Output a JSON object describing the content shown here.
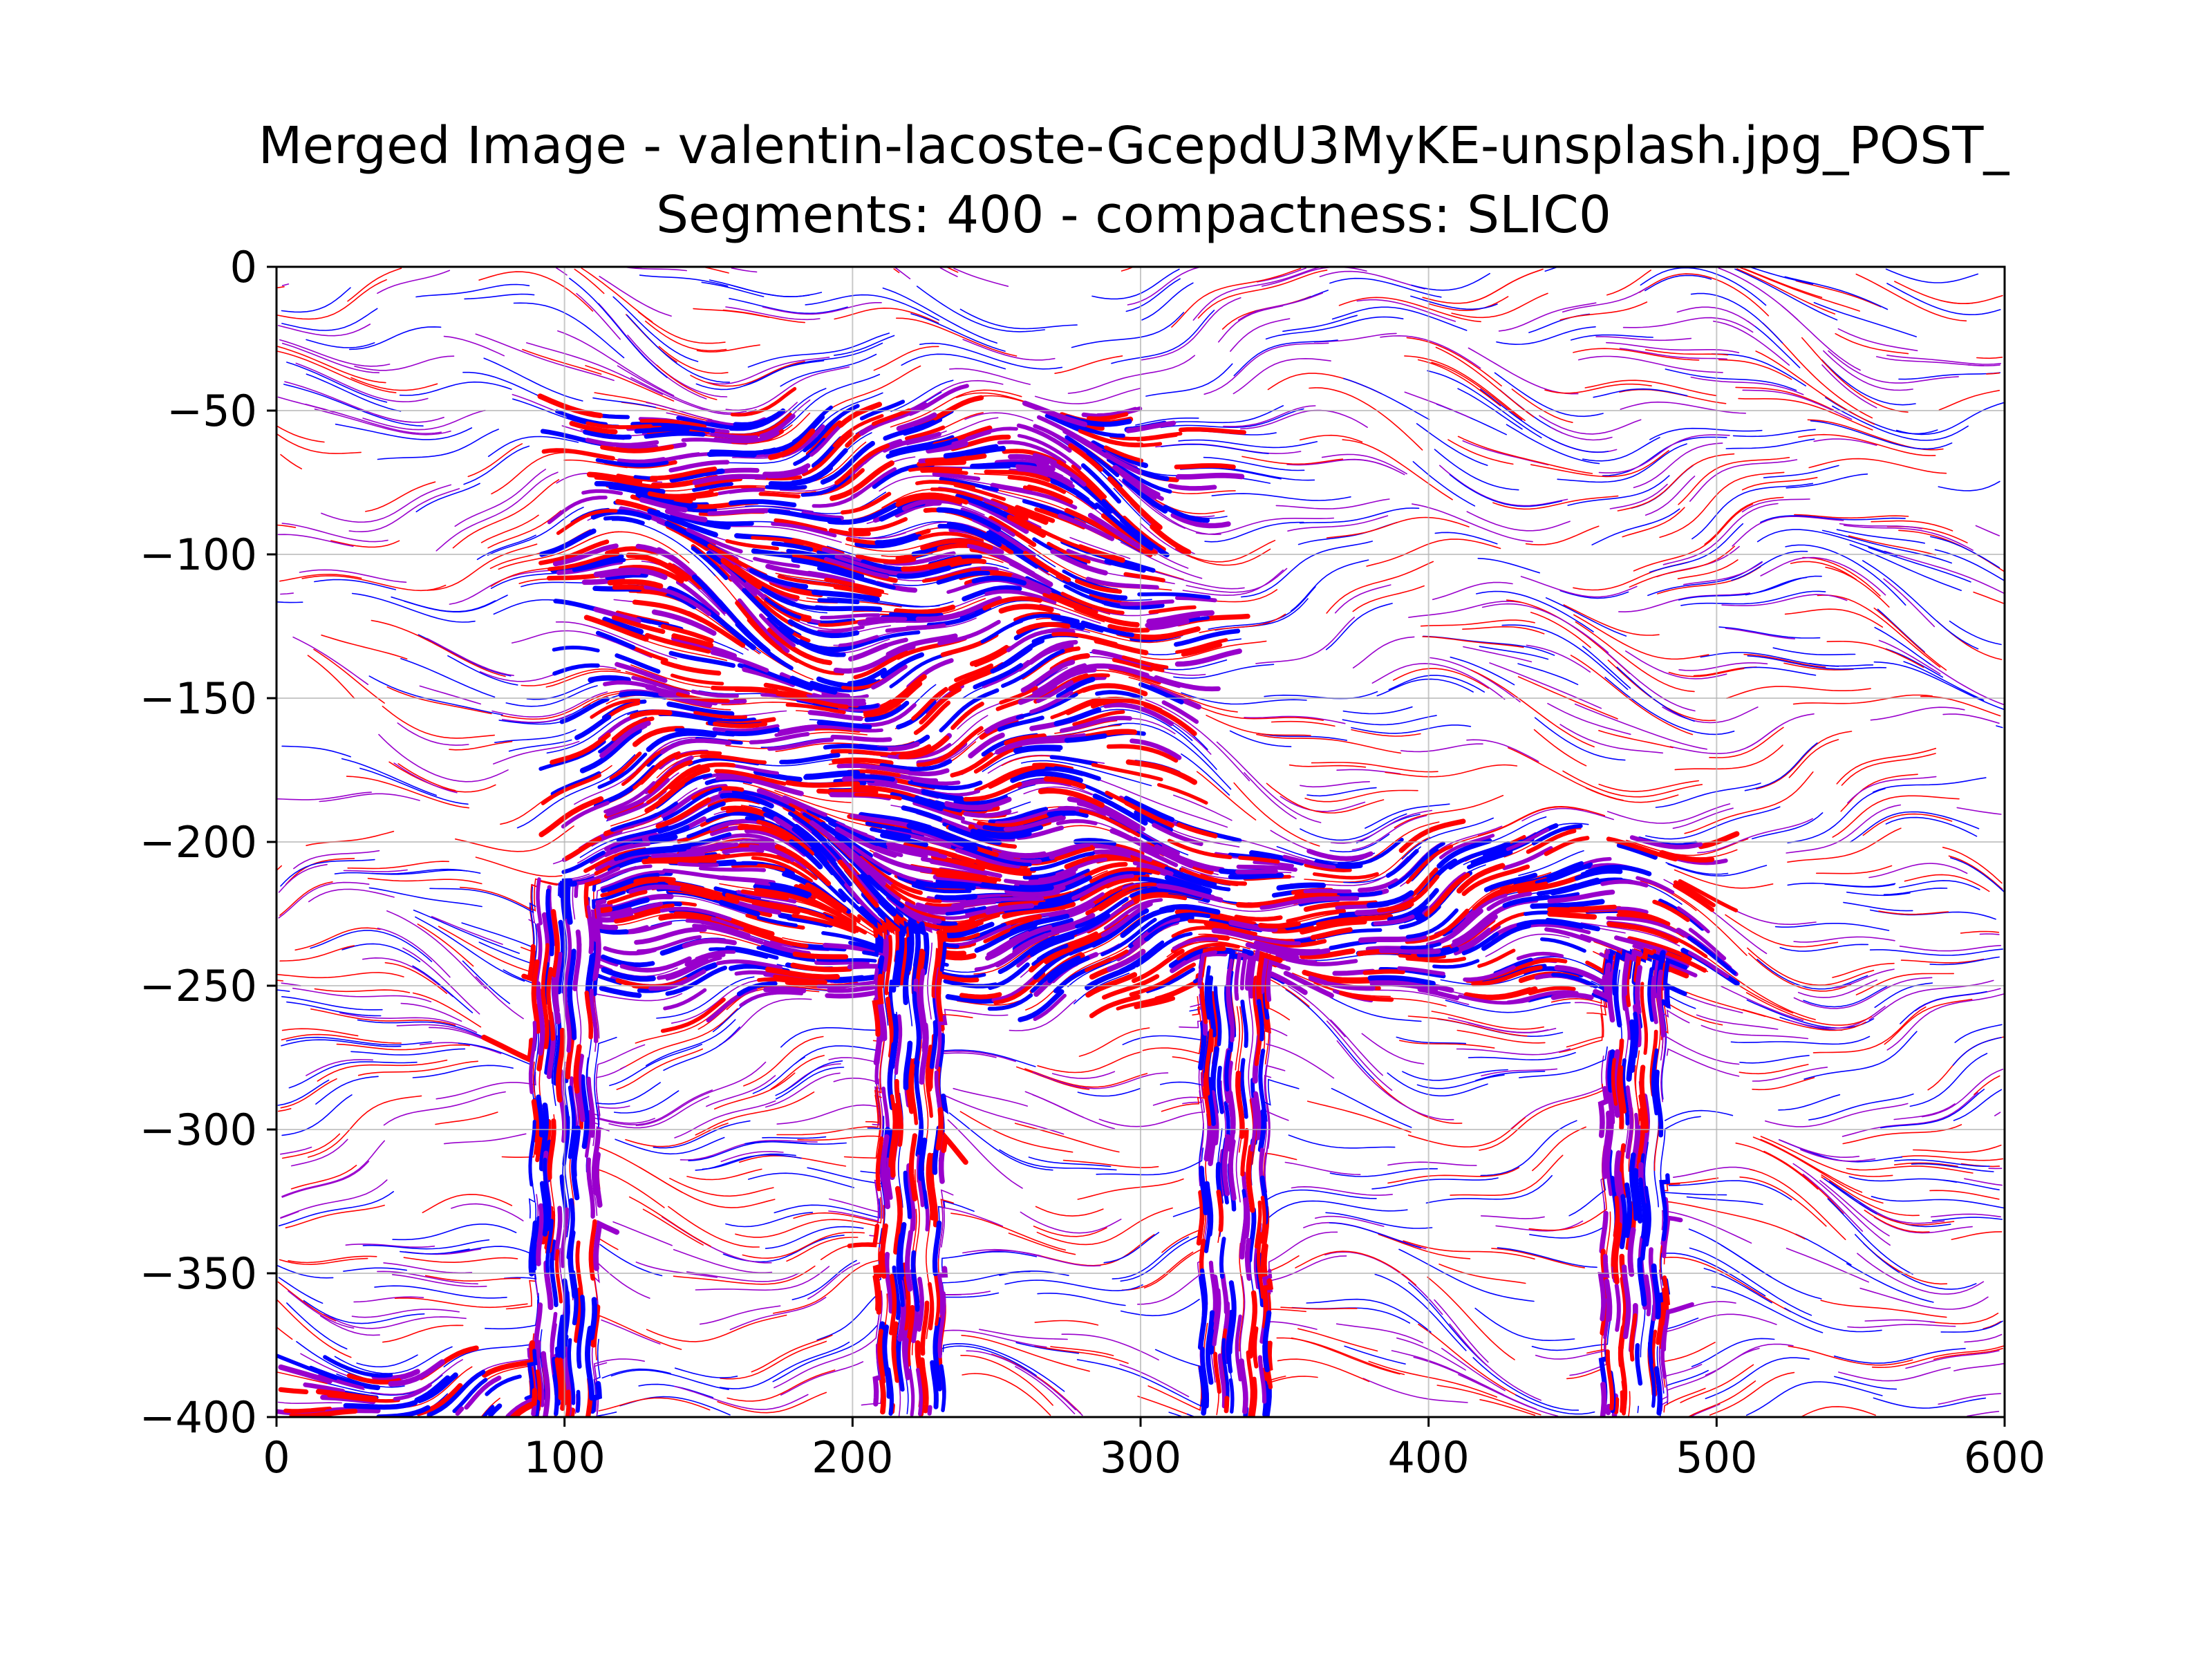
{
  "chart_data": {
    "type": "streamplot",
    "title_line1": "Merged Image - valentin-lacoste-GcepdU3MyKE-unsplash.jpg_POST_",
    "title_line2": "Segments: 400 - compactness: SLIC0",
    "xlabel": "",
    "ylabel": "",
    "xlim": [
      0,
      600
    ],
    "ylim": [
      -400,
      0
    ],
    "x_ticks": [
      0,
      100,
      200,
      300,
      400,
      500,
      600
    ],
    "y_ticks": [
      0,
      -50,
      -100,
      -150,
      -200,
      -250,
      -300,
      -350,
      -400
    ],
    "x_tick_labels": [
      "0",
      "100",
      "200",
      "300",
      "400",
      "500",
      "600"
    ],
    "y_tick_labels": [
      "0",
      "−50",
      "−100",
      "−150",
      "−200",
      "−250",
      "−300",
      "−350",
      "−400"
    ],
    "grid": true,
    "series_colors": [
      "#ff0000",
      "#0000ff",
      "#9900cc"
    ],
    "dense_regions": [
      {
        "name": "chair-back",
        "x": [
          110,
          315
        ],
        "y": [
          -50,
          -230
        ]
      },
      {
        "name": "chair-seat",
        "x": [
          110,
          495
        ],
        "y": [
          -200,
          -255
        ]
      },
      {
        "name": "leg-1",
        "x": [
          88,
          112
        ],
        "y": [
          -215,
          -400
        ]
      },
      {
        "name": "leg-2",
        "x": [
          208,
          232
        ],
        "y": [
          -230,
          -400
        ]
      },
      {
        "name": "leg-3",
        "x": [
          320,
          345
        ],
        "y": [
          -240,
          -400
        ]
      },
      {
        "name": "leg-4",
        "x": [
          460,
          483
        ],
        "y": [
          -240,
          -400
        ]
      },
      {
        "name": "floor-left",
        "x": [
          0,
          100
        ],
        "y": [
          -385,
          -400
        ]
      }
    ]
  }
}
